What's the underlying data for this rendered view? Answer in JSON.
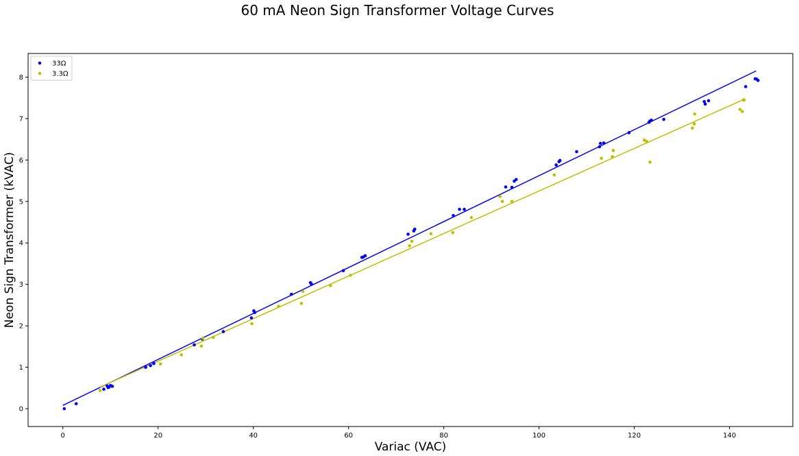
{
  "chart_data": {
    "type": "scatter",
    "title": "60 mA Neon Sign Transformer Voltage Curves",
    "xlabel": "Variac (VAC)",
    "ylabel": "Neon Sign Transformer (kVAC)",
    "xlim": [
      -7.3,
      153.3
    ],
    "ylim": [
      -0.43,
      8.57
    ],
    "xticks": [
      0,
      20,
      40,
      60,
      80,
      100,
      120,
      140
    ],
    "yticks": [
      0,
      1,
      2,
      3,
      4,
      5,
      6,
      7,
      8
    ],
    "grid": false,
    "legend": "upper left",
    "series": [
      {
        "name": "33Ω",
        "color": "#0000ff",
        "points": [
          [
            0.3,
            0.0
          ],
          [
            2.8,
            0.12
          ],
          [
            8.6,
            0.47
          ],
          [
            9.3,
            0.55
          ],
          [
            9.5,
            0.51
          ],
          [
            9.7,
            0.52
          ],
          [
            10.0,
            0.56
          ],
          [
            10.4,
            0.54
          ],
          [
            17.4,
            1.0
          ],
          [
            18.4,
            1.04
          ],
          [
            19.1,
            1.09
          ],
          [
            27.6,
            1.54
          ],
          [
            29.3,
            1.68
          ],
          [
            33.7,
            1.86
          ],
          [
            39.6,
            2.19
          ],
          [
            40.1,
            2.36
          ],
          [
            40.3,
            2.32
          ],
          [
            48.0,
            2.76
          ],
          [
            52.0,
            3.04
          ],
          [
            52.2,
            3.01
          ],
          [
            58.9,
            3.33
          ],
          [
            62.8,
            3.65
          ],
          [
            63.1,
            3.66
          ],
          [
            63.5,
            3.69
          ],
          [
            72.5,
            4.21
          ],
          [
            73.7,
            4.29
          ],
          [
            73.9,
            4.33
          ],
          [
            82.0,
            4.66
          ],
          [
            83.3,
            4.81
          ],
          [
            84.3,
            4.81
          ],
          [
            93.0,
            5.35
          ],
          [
            94.3,
            5.34
          ],
          [
            94.8,
            5.49
          ],
          [
            95.2,
            5.53
          ],
          [
            103.6,
            5.88
          ],
          [
            104.2,
            5.96
          ],
          [
            104.4,
            5.99
          ],
          [
            107.9,
            6.2
          ],
          [
            112.7,
            6.32
          ],
          [
            112.9,
            6.4
          ],
          [
            113.6,
            6.41
          ],
          [
            118.9,
            6.66
          ],
          [
            123.1,
            6.91
          ],
          [
            123.3,
            6.94
          ],
          [
            123.6,
            6.96
          ],
          [
            126.2,
            6.98
          ],
          [
            134.7,
            7.41
          ],
          [
            134.9,
            7.35
          ],
          [
            135.6,
            7.43
          ],
          [
            143.4,
            7.77
          ],
          [
            145.4,
            7.96
          ],
          [
            145.7,
            7.95
          ],
          [
            146.0,
            7.92
          ]
        ],
        "fit": [
          [
            0.0,
            0.08
          ],
          [
            145.6,
            8.15
          ]
        ]
      },
      {
        "name": "3.3Ω",
        "color": "#bfbf00",
        "points": [
          [
            7.8,
            0.44
          ],
          [
            20.5,
            1.08
          ],
          [
            24.9,
            1.3
          ],
          [
            29.1,
            1.51
          ],
          [
            29.4,
            1.7
          ],
          [
            31.6,
            1.72
          ],
          [
            39.7,
            2.05
          ],
          [
            45.3,
            2.47
          ],
          [
            50.1,
            2.54
          ],
          [
            50.4,
            2.83
          ],
          [
            56.2,
            2.97
          ],
          [
            60.4,
            3.22
          ],
          [
            72.8,
            3.93
          ],
          [
            73.3,
            4.04
          ],
          [
            77.3,
            4.22
          ],
          [
            81.9,
            4.25
          ],
          [
            85.8,
            4.61
          ],
          [
            91.8,
            5.12
          ],
          [
            92.3,
            5.0
          ],
          [
            94.3,
            5.0
          ],
          [
            103.2,
            5.64
          ],
          [
            113.1,
            6.04
          ],
          [
            115.4,
            6.08
          ],
          [
            115.6,
            6.23
          ],
          [
            122.1,
            6.48
          ],
          [
            122.6,
            6.45
          ],
          [
            123.3,
            5.95
          ],
          [
            132.2,
            6.77
          ],
          [
            132.6,
            6.87
          ],
          [
            132.7,
            7.11
          ],
          [
            142.2,
            7.22
          ],
          [
            142.7,
            7.17
          ],
          [
            142.9,
            7.45
          ],
          [
            143.1,
            7.45
          ]
        ],
        "fit": [
          [
            7.8,
            0.52
          ],
          [
            143.2,
            7.47
          ]
        ]
      }
    ]
  }
}
